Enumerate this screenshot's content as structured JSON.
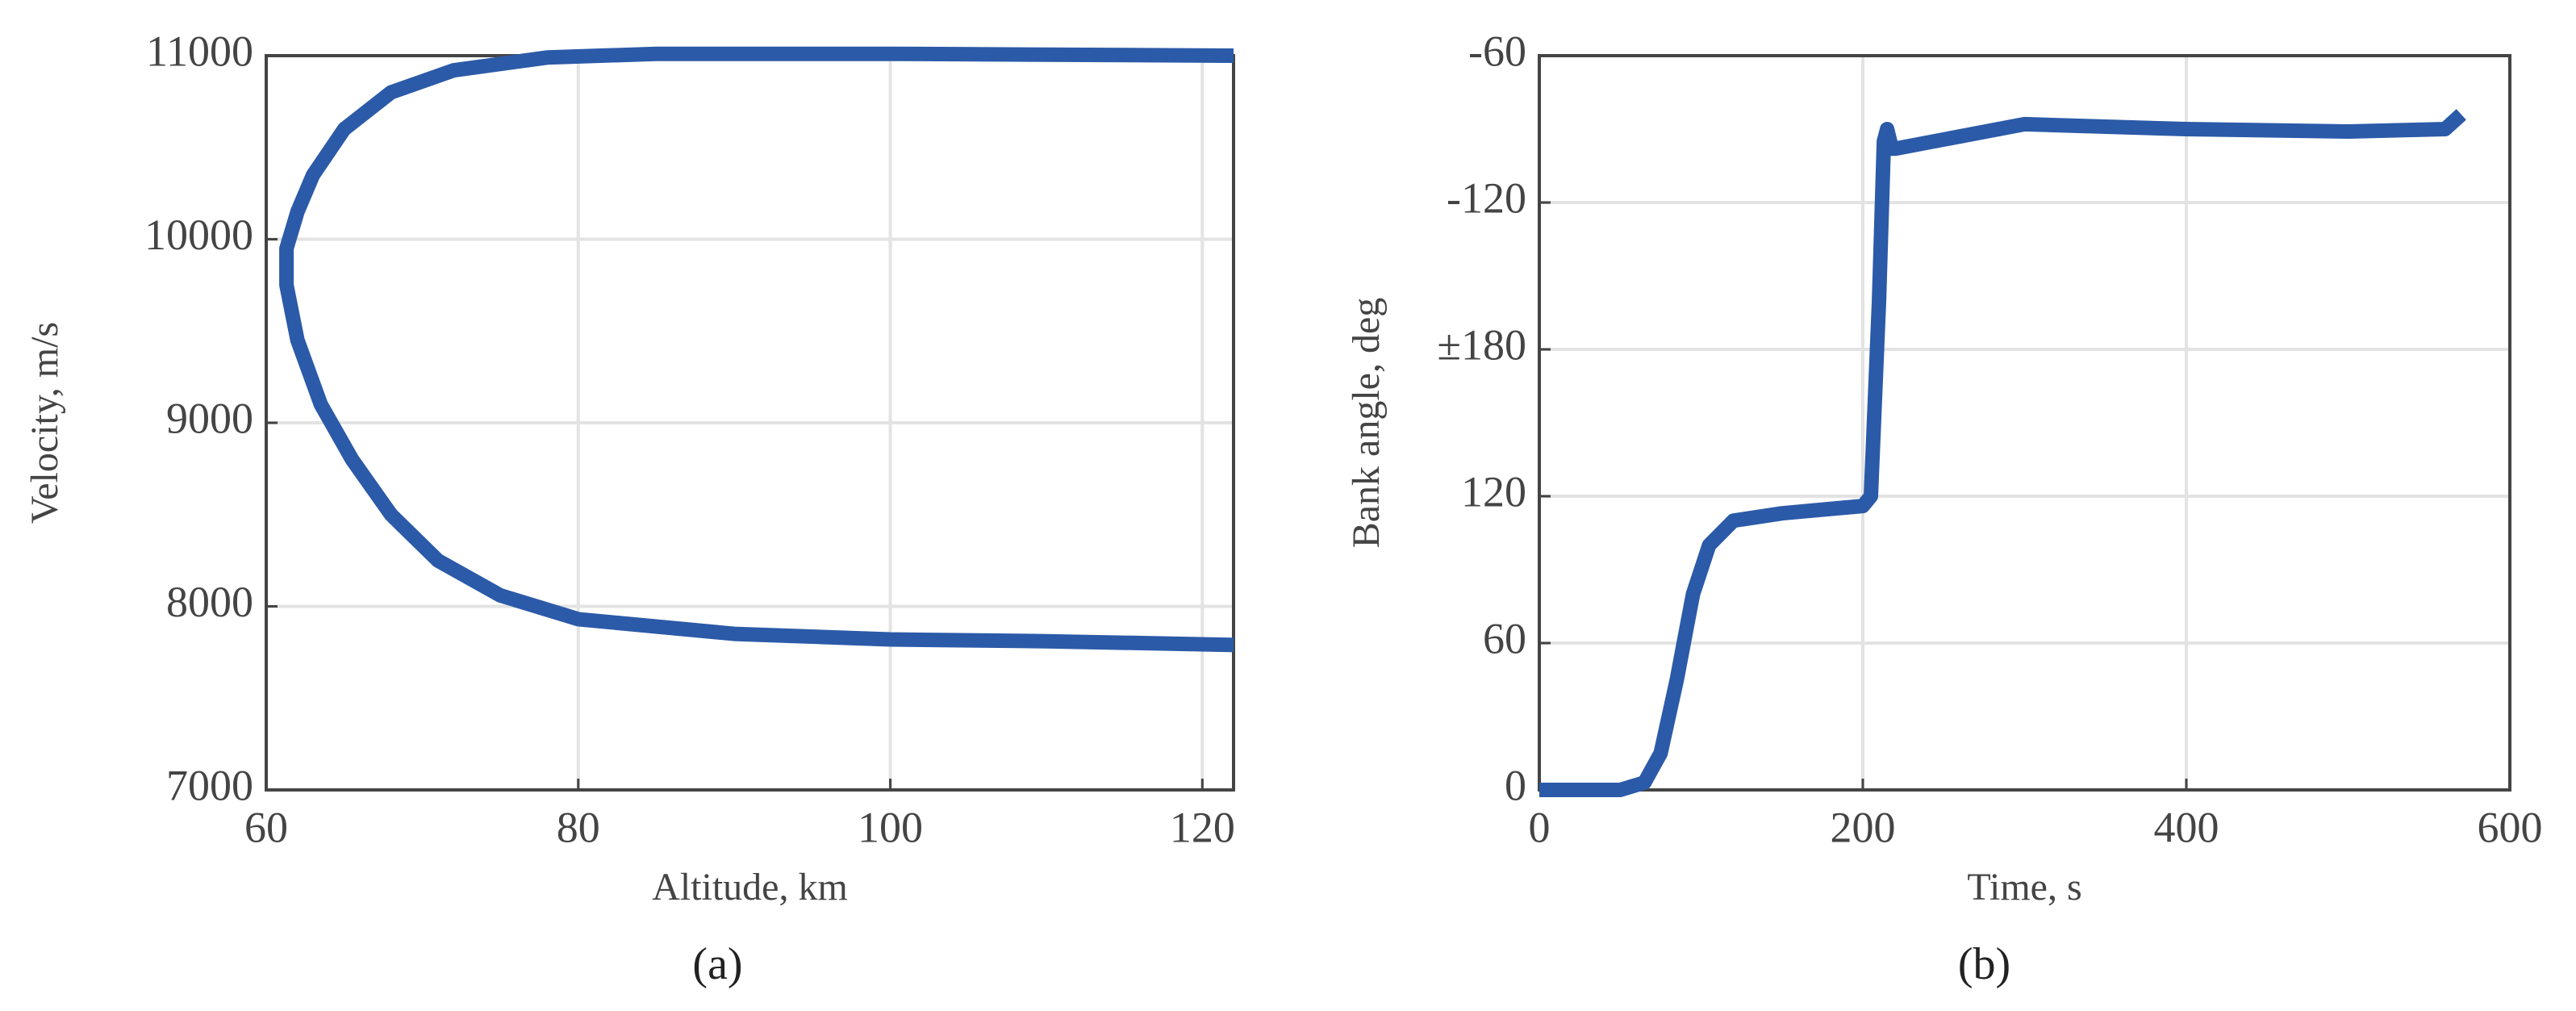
{
  "chart_data": [
    {
      "type": "line",
      "caption": "(a)",
      "xlabel": "Altitude, km",
      "ylabel": "Velocity, m/s",
      "x": [
        122,
        100,
        85,
        78,
        72,
        68,
        65,
        63,
        62,
        61.3,
        61.3,
        62,
        63.5,
        65.5,
        68,
        71,
        75,
        80,
        90,
        100,
        110,
        122
      ],
      "values": [
        11000,
        11010,
        11010,
        10990,
        10920,
        10800,
        10600,
        10350,
        10150,
        9950,
        9750,
        9450,
        9100,
        8800,
        8500,
        8250,
        8060,
        7930,
        7850,
        7820,
        7810,
        7790
      ],
      "color": "#2b5aa8",
      "xlim": [
        60,
        122
      ],
      "xticks": [
        60,
        80,
        100,
        120
      ],
      "ylim": [
        7000,
        11000
      ],
      "yticks": [
        7000,
        8000,
        9000,
        10000,
        11000
      ],
      "grid": true
    },
    {
      "type": "line",
      "caption": "(b)",
      "xlabel": "Time, s",
      "ylabel": "Bank angle, deg",
      "x": [
        0,
        50,
        65,
        75,
        85,
        95,
        105,
        120,
        150,
        200,
        205,
        210,
        213,
        215,
        218,
        220,
        300,
        400,
        500,
        560,
        570
      ],
      "values": [
        0,
        0,
        3,
        15,
        45,
        80,
        100,
        110,
        113,
        116,
        120,
        200,
        265,
        270,
        262,
        262,
        272,
        270,
        269,
        270,
        276
      ],
      "color": "#2b5aa8",
      "xlim": [
        0,
        600
      ],
      "xticks": [
        0,
        200,
        400,
        600
      ],
      "ylim": [
        0,
        300
      ],
      "yticks": [
        0,
        60,
        120,
        {
          "value": 180,
          "label": "±180"
        },
        {
          "value": 240,
          "label": "-120"
        },
        {
          "value": 300,
          "label": "-60"
        }
      ],
      "grid": true
    }
  ]
}
